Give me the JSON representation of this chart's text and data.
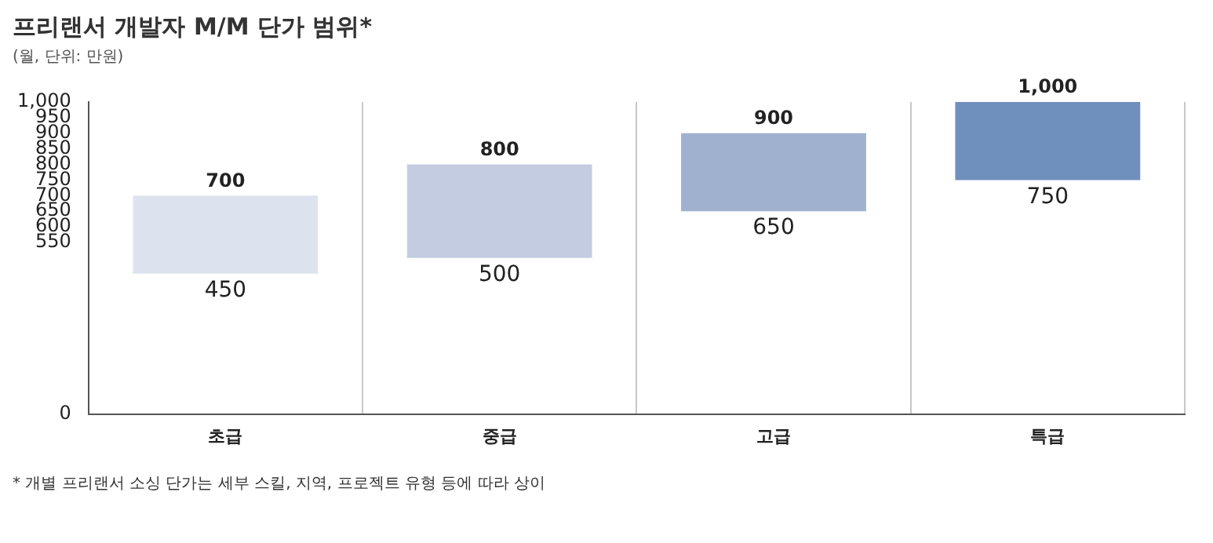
{
  "chart_data": {
    "type": "bar",
    "title": "프리랜서 개발자 M/M 단가 범위*",
    "subtitle": "(월, 단위: 만원)",
    "categories": [
      "초급",
      "중급",
      "고급",
      "특급"
    ],
    "values": [
      250,
      300,
      250,
      250
    ],
    "base": [
      450,
      500,
      650,
      750
    ],
    "colors": [
      "#dde3ee",
      "#c3cce0",
      "#a0b0cf",
      "#6f8fbd"
    ],
    "ylim": [
      0,
      1000
    ],
    "yticks": [
      0,
      550,
      600,
      650,
      700,
      750,
      800,
      850,
      900,
      950,
      {
        "value": 1000,
        "label": "1,000"
      }
    ],
    "grid": "x",
    "legend": false,
    "annotations": [
      {
        "text": "700",
        "x": "초급",
        "y": 700
      },
      {
        "text": "450",
        "x": "초급",
        "y": 450
      },
      {
        "text": "800",
        "x": "중급",
        "y": 800
      },
      {
        "text": "500",
        "x": "중급",
        "y": 500
      },
      {
        "text": "900",
        "x": "고급",
        "y": 900
      },
      {
        "text": "650",
        "x": "고급",
        "y": 650
      },
      {
        "text": "1,000",
        "x": "특급",
        "y": 1000
      },
      {
        "text": "750",
        "x": "특급",
        "y": 750
      },
      "* 개별 프리랜서 소싱 단가는 세부 스킬, 지역, 프로젝트 유형 등에 따라 상이"
    ]
  }
}
